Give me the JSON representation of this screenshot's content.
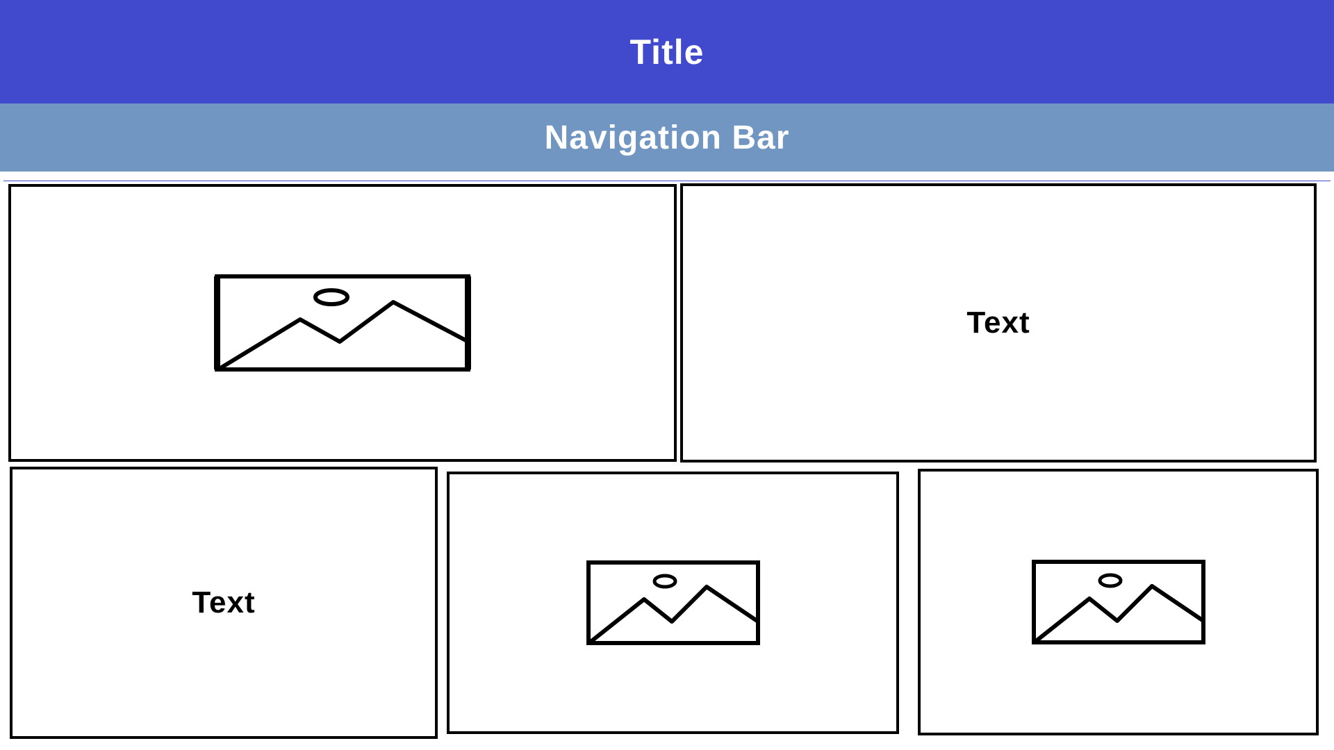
{
  "header": {
    "title": "Title",
    "color": "#4149cd"
  },
  "nav": {
    "label": "Navigation Bar",
    "color": "#7096c1"
  },
  "panels": [
    {
      "kind": "image",
      "icon": "image-placeholder-icon"
    },
    {
      "kind": "text",
      "label": "Text"
    },
    {
      "kind": "text",
      "label": "Text"
    },
    {
      "kind": "image",
      "icon": "image-placeholder-icon"
    },
    {
      "kind": "image",
      "icon": "image-placeholder-icon"
    }
  ]
}
